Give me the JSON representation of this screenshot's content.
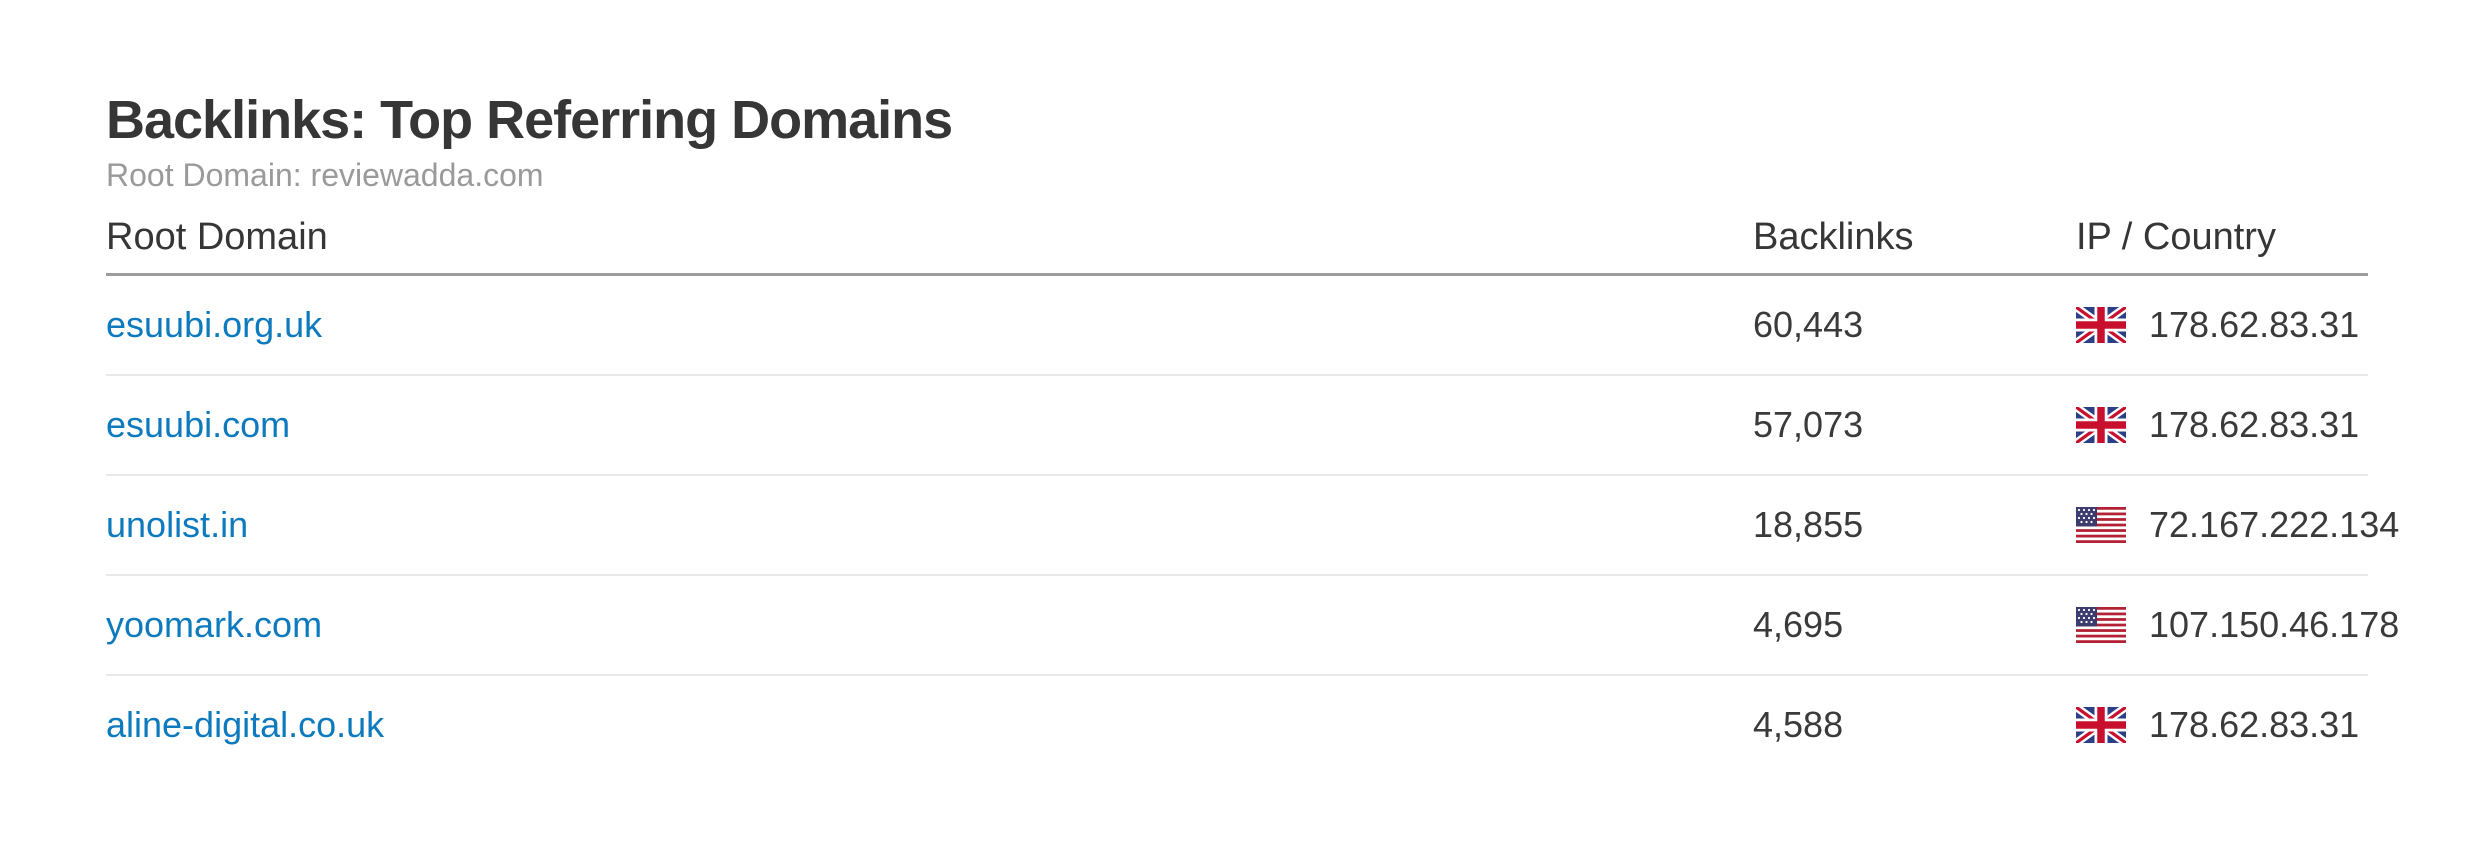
{
  "widget": {
    "title": "Backlinks: Top Referring Domains",
    "subtitle": "Root Domain: reviewadda.com"
  },
  "table": {
    "columns": [
      {
        "key": "domain",
        "label": "Root Domain"
      },
      {
        "key": "backlinks",
        "label": "Backlinks"
      },
      {
        "key": "ip_country",
        "label": "IP / Country"
      }
    ],
    "rows": [
      {
        "domain": "esuubi.org.uk",
        "backlinks": "60,443",
        "country": "GB",
        "flag_icon": "uk-flag-icon",
        "ip": "178.62.83.31"
      },
      {
        "domain": "esuubi.com",
        "backlinks": "57,073",
        "country": "GB",
        "flag_icon": "uk-flag-icon",
        "ip": "178.62.83.31"
      },
      {
        "domain": "unolist.in",
        "backlinks": "18,855",
        "country": "US",
        "flag_icon": "us-flag-icon",
        "ip": "72.167.222.134"
      },
      {
        "domain": "yoomark.com",
        "backlinks": "4,695",
        "country": "US",
        "flag_icon": "us-flag-icon",
        "ip": "107.150.46.178"
      },
      {
        "domain": "aline-digital.co.uk",
        "backlinks": "4,588",
        "country": "GB",
        "flag_icon": "uk-flag-icon",
        "ip": "178.62.83.31"
      }
    ]
  },
  "colors": {
    "link_blue": "#0d7abe",
    "text_dark": "#363636",
    "text_muted": "#9a9a9a",
    "header_border": "#9c9c9c",
    "row_border": "#e8e8e8",
    "background": "#ffffff"
  }
}
